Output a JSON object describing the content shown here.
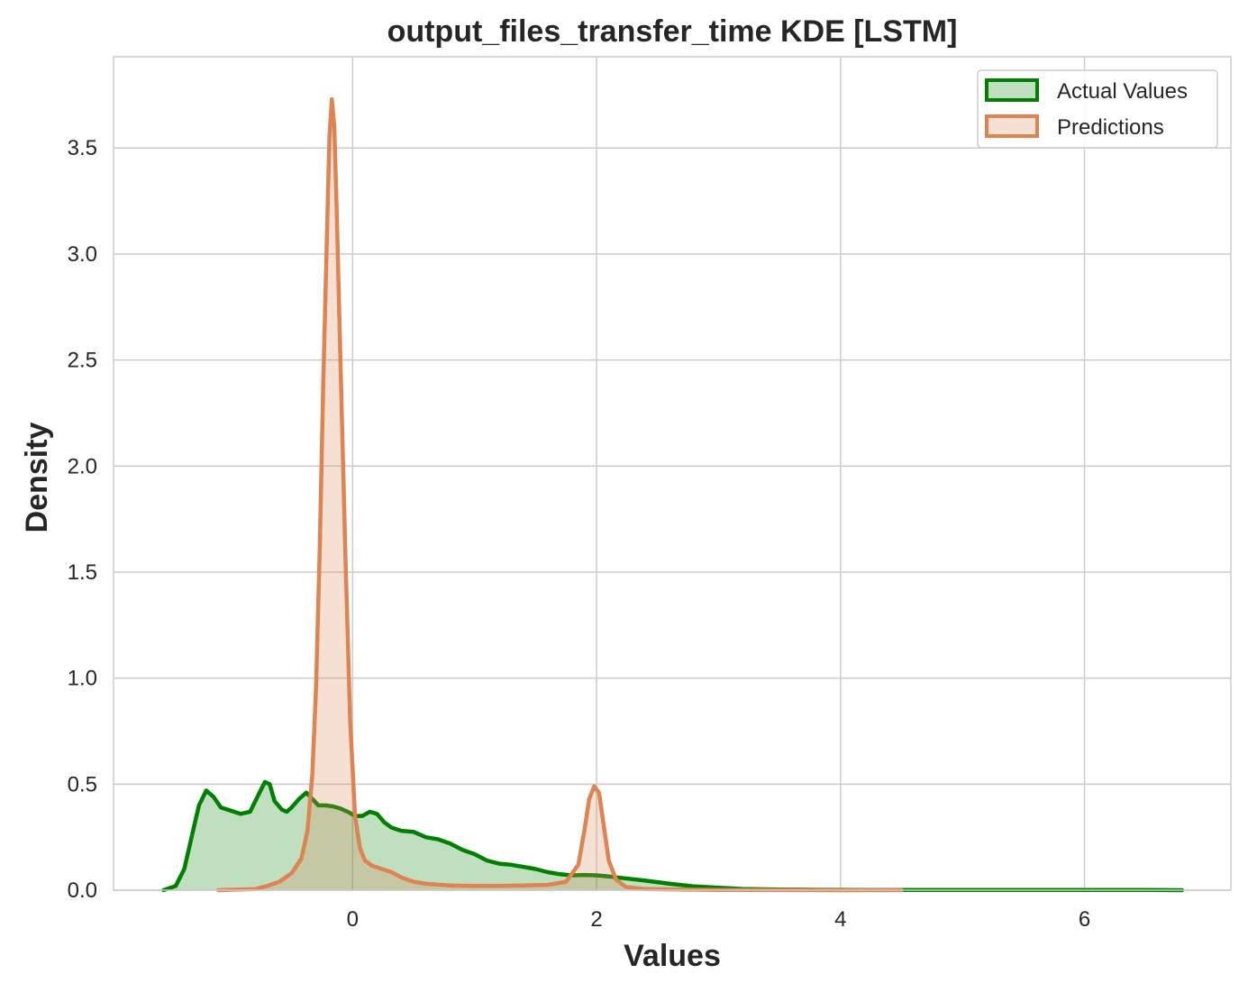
{
  "chart_data": {
    "type": "area",
    "title": "output_files_transfer_time KDE [LSTM]",
    "xlabel": "Values",
    "ylabel": "Density",
    "xlim": [
      -1.96,
      7.2
    ],
    "ylim": [
      0,
      3.93
    ],
    "xticks": [
      0,
      2,
      4,
      6
    ],
    "yticks": [
      0.0,
      0.5,
      1.0,
      1.5,
      2.0,
      2.5,
      3.0,
      3.5
    ],
    "grid": true,
    "legend_position": "top-right",
    "series": [
      {
        "name": "Actual Values",
        "color": "#008000",
        "fill": "#008000",
        "x": [
          -1.55,
          -1.45,
          -1.38,
          -1.32,
          -1.26,
          -1.2,
          -1.14,
          -1.08,
          -1.0,
          -0.92,
          -0.84,
          -0.78,
          -0.72,
          -0.68,
          -0.64,
          -0.58,
          -0.54,
          -0.5,
          -0.44,
          -0.38,
          -0.33,
          -0.28,
          -0.22,
          -0.16,
          -0.1,
          -0.04,
          0.02,
          0.08,
          0.14,
          0.2,
          0.26,
          0.32,
          0.4,
          0.5,
          0.6,
          0.7,
          0.8,
          0.9,
          1.0,
          1.1,
          1.2,
          1.3,
          1.4,
          1.5,
          1.6,
          1.7,
          1.8,
          1.9,
          2.0,
          2.1,
          2.2,
          2.4,
          2.6,
          2.8,
          3.0,
          3.2,
          3.5,
          3.8,
          4.2,
          4.6,
          5.0,
          5.5,
          6.0,
          6.5,
          6.8
        ],
        "y": [
          0.0,
          0.02,
          0.1,
          0.25,
          0.4,
          0.47,
          0.44,
          0.39,
          0.375,
          0.36,
          0.37,
          0.44,
          0.51,
          0.5,
          0.42,
          0.38,
          0.37,
          0.39,
          0.43,
          0.46,
          0.43,
          0.4,
          0.4,
          0.395,
          0.385,
          0.37,
          0.35,
          0.35,
          0.37,
          0.36,
          0.32,
          0.295,
          0.28,
          0.275,
          0.25,
          0.24,
          0.22,
          0.19,
          0.17,
          0.14,
          0.125,
          0.12,
          0.11,
          0.1,
          0.085,
          0.075,
          0.07,
          0.072,
          0.07,
          0.065,
          0.058,
          0.045,
          0.03,
          0.018,
          0.012,
          0.006,
          0.003,
          0.002,
          0.001,
          0.001,
          0.001,
          0.001,
          0.001,
          0.001,
          0.0
        ]
      },
      {
        "name": "Predictions",
        "color": "#DD8452",
        "fill": "#DD8452",
        "x": [
          -1.1,
          -0.8,
          -0.7,
          -0.6,
          -0.5,
          -0.42,
          -0.37,
          -0.33,
          -0.3,
          -0.27,
          -0.24,
          -0.21,
          -0.19,
          -0.17,
          -0.15,
          -0.13,
          -0.1,
          -0.06,
          -0.02,
          0.02,
          0.06,
          0.1,
          0.16,
          0.24,
          0.32,
          0.4,
          0.5,
          0.6,
          0.8,
          1.0,
          1.2,
          1.4,
          1.6,
          1.75,
          1.85,
          1.9,
          1.94,
          1.98,
          2.02,
          2.06,
          2.1,
          2.16,
          2.24,
          2.4,
          3.0,
          4.0,
          4.5
        ],
        "y": [
          0.0,
          0.005,
          0.02,
          0.04,
          0.08,
          0.15,
          0.28,
          0.55,
          0.95,
          1.6,
          2.4,
          3.1,
          3.55,
          3.73,
          3.6,
          3.2,
          2.5,
          1.6,
          0.8,
          0.35,
          0.2,
          0.14,
          0.115,
          0.1,
          0.085,
          0.06,
          0.04,
          0.03,
          0.022,
          0.02,
          0.02,
          0.022,
          0.025,
          0.04,
          0.12,
          0.28,
          0.43,
          0.49,
          0.46,
          0.3,
          0.14,
          0.05,
          0.015,
          0.005,
          0.001,
          0.0,
          0.0
        ]
      }
    ]
  }
}
